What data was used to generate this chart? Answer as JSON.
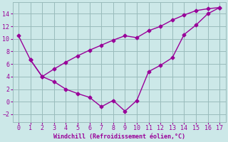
{
  "line1_x": [
    0,
    1,
    2,
    3,
    4,
    5,
    6,
    7,
    8,
    9,
    10,
    11,
    12,
    13,
    14,
    15,
    16,
    17
  ],
  "line1_y": [
    10.5,
    6.7,
    4.0,
    3.2,
    2.0,
    1.3,
    0.7,
    -0.8,
    0.2,
    -1.5,
    0.2,
    4.8,
    5.8,
    7.0,
    10.7,
    12.2,
    14.0,
    15.0
  ],
  "line2_x": [
    1,
    2,
    3,
    4,
    5,
    6,
    7,
    8,
    9,
    10,
    11,
    12,
    13,
    14,
    15,
    16,
    17
  ],
  "line2_y": [
    6.7,
    4.0,
    5.2,
    6.3,
    7.3,
    8.2,
    9.0,
    9.8,
    10.5,
    10.2,
    11.3,
    12.0,
    13.0,
    13.8,
    14.5,
    14.8,
    15.0
  ],
  "color": "#990099",
  "bg_color": "#cce8e8",
  "grid_color": "#99bbbb",
  "xlabel": "Windchill (Refroidissement éolien,°C)",
  "xlim": [
    -0.5,
    17.5
  ],
  "ylim": [
    -3.2,
    15.8
  ],
  "xticks": [
    0,
    1,
    2,
    3,
    4,
    5,
    6,
    7,
    8,
    9,
    10,
    11,
    12,
    13,
    14,
    15,
    16,
    17
  ],
  "yticks": [
    -2,
    0,
    2,
    4,
    6,
    8,
    10,
    12,
    14
  ],
  "marker": "D",
  "marker_size": 2.5,
  "line_width": 1.0,
  "xlabel_fontsize": 6.0,
  "tick_fontsize": 6.0
}
